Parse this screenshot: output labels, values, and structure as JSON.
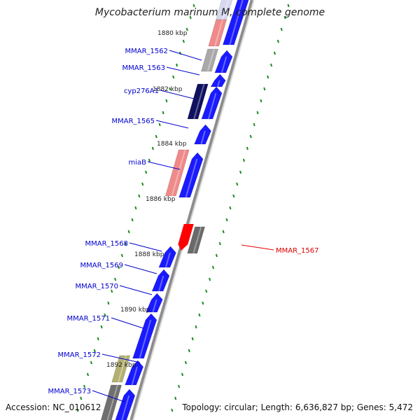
{
  "title": "Mycobacterium marinum M, complete genome",
  "accession": "Accession: NC_010612",
  "topology": "Topology: circular; Length: 6,636,827 bp; Genes: 5,472",
  "colors": {
    "cds_blue": "#1a1aff",
    "pseudogene_pink": "#f08a8a",
    "grey_feature": "#a9a9a9",
    "dark_navy": "#101060",
    "olive": "#b4b070",
    "highlight_red": "#ff0000",
    "label_blue": "#0000cc",
    "label_red": "#dd0000",
    "tick_green": "#1a8c1a",
    "backbone": "#8c8c8c"
  },
  "scale_labels": [
    "1880 kbp",
    "1882 kbp",
    "1884 kbp",
    "1886 kbp",
    "1888 kbp",
    "1890 kbp",
    "1892 kbp"
  ],
  "genes": [
    {
      "name": "MMAR_1562",
      "highlight": false
    },
    {
      "name": "MMAR_1563",
      "highlight": false
    },
    {
      "name": "cyp276A1",
      "highlight": false
    },
    {
      "name": "MMAR_1565",
      "highlight": false
    },
    {
      "name": "miaB",
      "highlight": false
    },
    {
      "name": "MMAR_1567",
      "highlight": true
    },
    {
      "name": "MMAR_1568",
      "highlight": false
    },
    {
      "name": "MMAR_1569",
      "highlight": false
    },
    {
      "name": "MMAR_1570",
      "highlight": false
    },
    {
      "name": "MMAR_1571",
      "highlight": false
    },
    {
      "name": "MMAR_1572",
      "highlight": false
    },
    {
      "name": "MMAR_1573",
      "highlight": false
    }
  ]
}
